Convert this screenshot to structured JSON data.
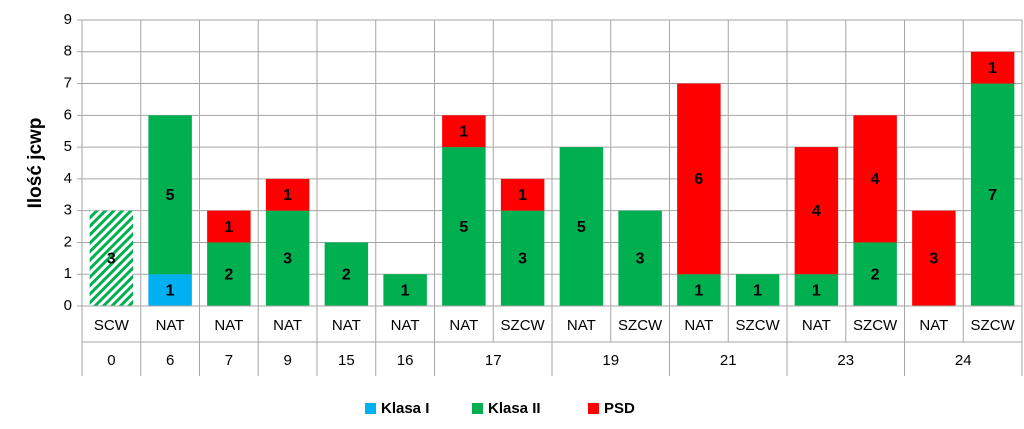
{
  "chart_data": {
    "type": "stacked_bar",
    "y_label": "Ilość jcwp",
    "groups": [
      {
        "name": "0",
        "categories": [
          "SCW"
        ]
      },
      {
        "name": "6",
        "categories": [
          "NAT"
        ]
      },
      {
        "name": "7",
        "categories": [
          "NAT"
        ]
      },
      {
        "name": "9",
        "categories": [
          "NAT"
        ]
      },
      {
        "name": "15",
        "categories": [
          "NAT"
        ]
      },
      {
        "name": "16",
        "categories": [
          "NAT"
        ]
      },
      {
        "name": "17",
        "categories": [
          "NAT",
          "SZCW"
        ]
      },
      {
        "name": "19",
        "categories": [
          "NAT",
          "SZCW"
        ]
      },
      {
        "name": "21",
        "categories": [
          "NAT",
          "SZCW"
        ]
      },
      {
        "name": "23",
        "categories": [
          "NAT",
          "SZCW"
        ]
      },
      {
        "name": "24",
        "categories": [
          "NAT",
          "SZCW"
        ]
      }
    ],
    "series": [
      {
        "name": "Klasa I",
        "color": "#00b0f0",
        "values": [
          null,
          1,
          null,
          null,
          null,
          null,
          null,
          null,
          null,
          null,
          null,
          null,
          null,
          null,
          null,
          null
        ]
      },
      {
        "name": "Klasa II",
        "color": "#00b050",
        "hatched": [
          0
        ],
        "values": [
          3,
          5,
          2,
          3,
          2,
          1,
          5,
          3,
          5,
          3,
          1,
          1,
          1,
          2,
          null,
          7
        ]
      },
      {
        "name": "PSD",
        "color": "#ff0000",
        "values": [
          null,
          null,
          1,
          1,
          null,
          null,
          1,
          1,
          null,
          null,
          6,
          null,
          4,
          4,
          3,
          1
        ]
      }
    ],
    "ylim": [
      0,
      9
    ],
    "yticks": [
      0,
      1,
      2,
      3,
      4,
      5,
      6,
      7,
      8,
      9
    ],
    "grid": true,
    "legend": "bottom"
  }
}
